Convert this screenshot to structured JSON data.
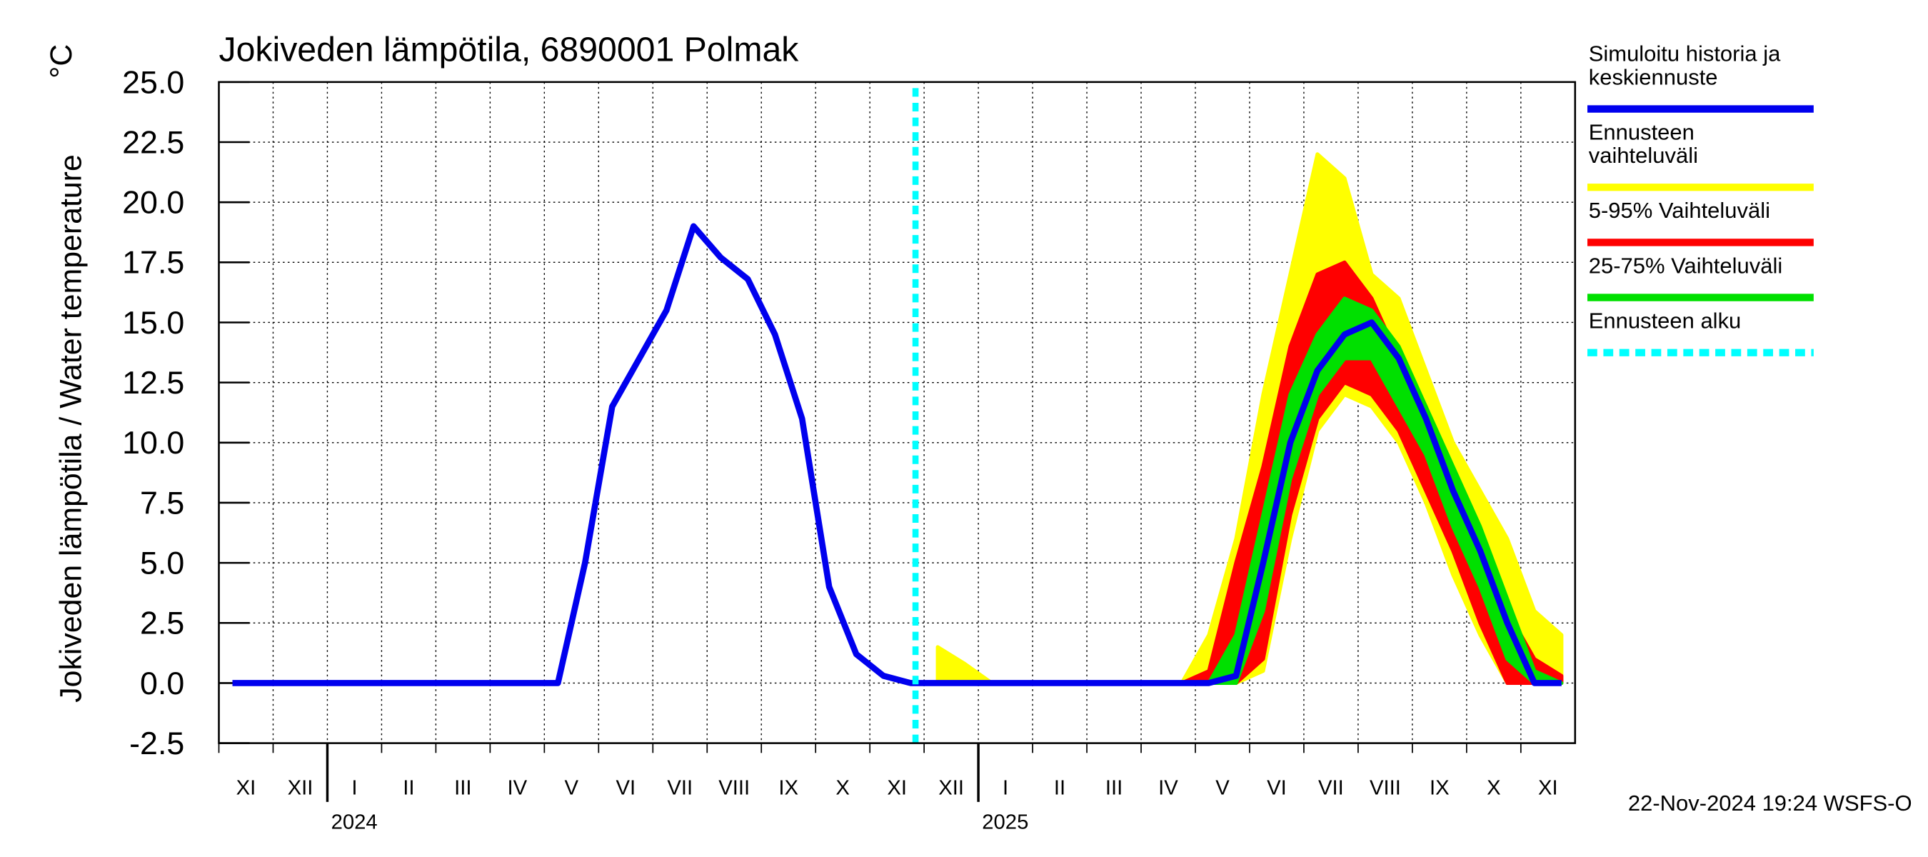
{
  "chart_data": {
    "type": "band-line",
    "title": "Jokiveden lämpötila, 6890001 Polmak",
    "y_label": "Jokiveden lämpötila / Water temperature",
    "y_unit": "°C",
    "footer": "22-Nov-2024 19:24 WSFS-O",
    "categories": [
      "XI",
      null,
      "XII",
      null,
      "I",
      null,
      "II",
      null,
      "III",
      null,
      "IV",
      null,
      "V",
      null,
      "VI",
      null,
      "VII",
      null,
      "VIII",
      null,
      "IX",
      null,
      "X",
      null,
      "XI",
      null,
      "XII",
      null,
      "I",
      null,
      "II",
      null,
      "III",
      null,
      "IV",
      null,
      "V",
      null,
      "VI",
      null,
      "VII",
      null,
      "VIII",
      null,
      "IX",
      null,
      "X",
      null,
      "XI",
      null
    ],
    "years": [
      "2024",
      "2025"
    ],
    "ylim": [
      -2.5,
      25
    ],
    "yticks": [
      -2.5,
      {
        "value": 0,
        "label": "0.0"
      },
      2.5,
      {
        "value": 5,
        "label": "5.0"
      },
      7.5,
      {
        "value": 10,
        "label": "10.0"
      },
      12.5,
      {
        "value": 15,
        "label": "15.0"
      },
      17.5,
      {
        "value": 20,
        "label": "20.0"
      },
      22.5,
      {
        "value": 25,
        "label": "25.0"
      }
    ],
    "grid": true,
    "bands": [
      {
        "name": "Ennusteen vaihteluväli",
        "color": "#ffff00",
        "lower": [
          null,
          null,
          null,
          null,
          null,
          null,
          null,
          null,
          null,
          null,
          null,
          null,
          null,
          null,
          null,
          null,
          null,
          null,
          null,
          null,
          null,
          null,
          null,
          null,
          null,
          null,
          0,
          0,
          0,
          0,
          0,
          0,
          0,
          0,
          0,
          0,
          0,
          0,
          0.5,
          6,
          10.5,
          12,
          11.5,
          10,
          7.5,
          4.5,
          2,
          0,
          0,
          0
        ],
        "upper": [
          null,
          null,
          null,
          null,
          null,
          null,
          null,
          null,
          null,
          null,
          null,
          null,
          null,
          null,
          null,
          null,
          null,
          null,
          null,
          null,
          null,
          null,
          null,
          null,
          null,
          null,
          1.5,
          0.8,
          0,
          0,
          0,
          0,
          0,
          0,
          0,
          0,
          2,
          6,
          12,
          17,
          22,
          21,
          17,
          16,
          13,
          10,
          8,
          6,
          3,
          2
        ]
      },
      {
        "name": "5-95% Vaihteluväli",
        "color": "#ff0000",
        "lower": [
          null,
          null,
          null,
          null,
          null,
          null,
          null,
          null,
          null,
          null,
          null,
          null,
          null,
          null,
          null,
          null,
          null,
          null,
          null,
          null,
          null,
          null,
          null,
          null,
          null,
          null,
          0,
          0,
          0,
          0,
          0,
          0,
          0,
          0,
          0,
          0,
          0,
          0,
          1,
          7,
          11,
          12.5,
          12,
          10.5,
          8,
          5.5,
          2.5,
          0,
          0,
          0
        ],
        "upper": [
          null,
          null,
          null,
          null,
          null,
          null,
          null,
          null,
          null,
          null,
          null,
          null,
          null,
          null,
          null,
          null,
          null,
          null,
          null,
          null,
          null,
          null,
          null,
          null,
          null,
          null,
          0,
          0,
          0,
          0,
          0,
          0,
          0,
          0,
          0,
          0,
          0.5,
          5,
          9,
          14,
          17,
          17.5,
          16,
          13.5,
          11.5,
          8.5,
          6,
          3,
          1,
          0.3
        ]
      },
      {
        "name": "25-75% Vaihteluväli",
        "color": "#00e000",
        "lower": [
          null,
          null,
          null,
          null,
          null,
          null,
          null,
          null,
          null,
          null,
          null,
          null,
          null,
          null,
          null,
          null,
          null,
          null,
          null,
          null,
          null,
          null,
          null,
          null,
          null,
          null,
          0,
          0,
          0,
          0,
          0,
          0,
          0,
          0,
          0,
          0,
          0,
          0,
          3,
          8.5,
          12,
          13.5,
          13.5,
          11.5,
          9.5,
          6.5,
          4,
          1,
          0,
          0
        ],
        "upper": [
          null,
          null,
          null,
          null,
          null,
          null,
          null,
          null,
          null,
          null,
          null,
          null,
          null,
          null,
          null,
          null,
          null,
          null,
          null,
          null,
          null,
          null,
          null,
          null,
          null,
          null,
          0,
          0,
          0,
          0,
          0,
          0,
          0,
          0,
          0,
          0,
          0,
          2,
          7,
          12,
          14.5,
          16,
          15.5,
          14,
          11.5,
          9,
          6.5,
          3.5,
          0.5,
          0
        ]
      }
    ],
    "series": [
      {
        "name": "Simuloitu historia ja keskiennuste",
        "color": "#0000ee",
        "values": [
          0,
          0,
          0,
          0,
          0,
          0,
          0,
          0,
          0,
          0,
          0,
          0,
          0,
          5,
          11.5,
          13.5,
          15.5,
          19,
          17.7,
          16.8,
          14.5,
          11,
          4,
          1.2,
          0.3,
          0,
          0,
          0,
          0,
          0,
          0,
          0,
          0,
          0,
          0,
          0,
          0,
          0.3,
          5,
          10,
          13,
          14.5,
          15,
          13.5,
          11,
          8,
          5.5,
          2.5,
          0,
          0
        ]
      }
    ],
    "forecast_start": {
      "name": "Ennusteen alku",
      "color": "#00ffff"
    }
  }
}
